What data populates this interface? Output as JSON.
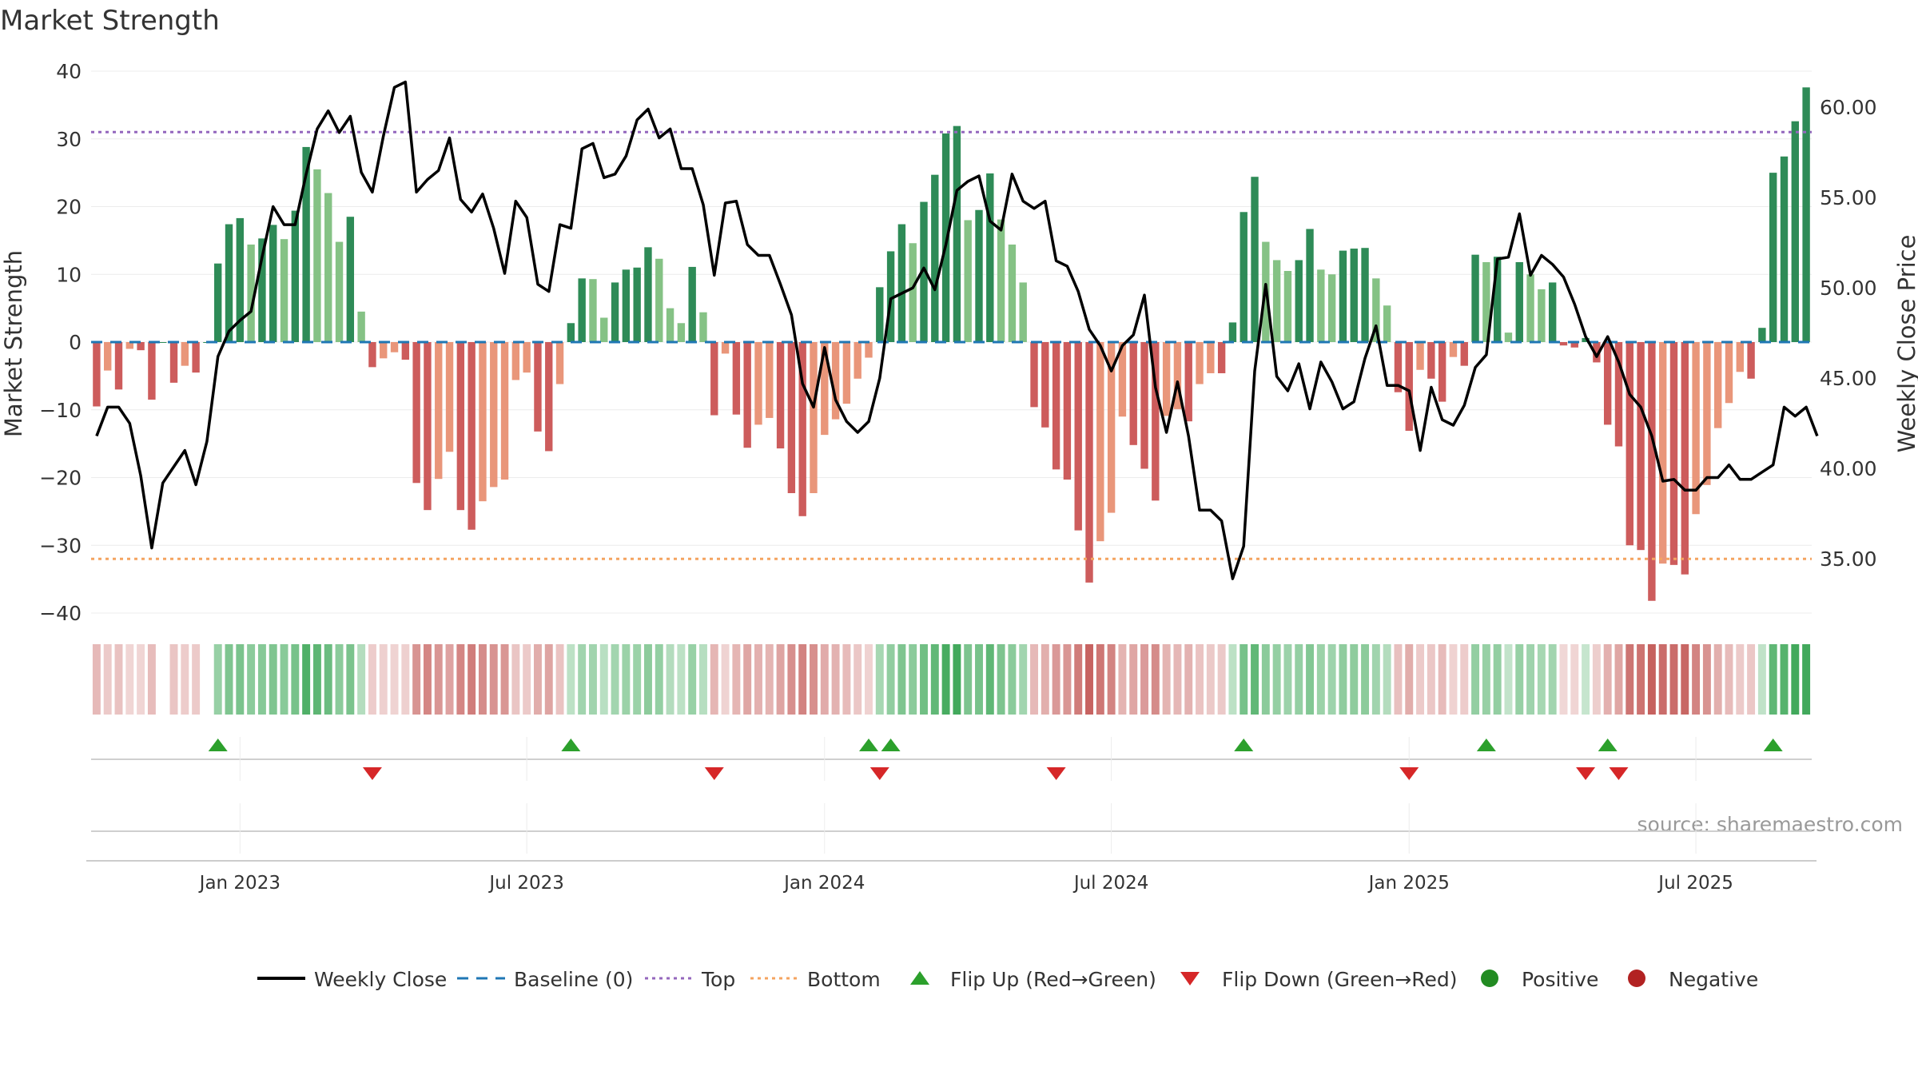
{
  "chart_data": {
    "type": "bar",
    "title": "Market Strength",
    "ylabel": "Market Strength",
    "y2label": "Weekly Close Price",
    "source": "source: sharemaestro.com",
    "ylim": [
      -40,
      40
    ],
    "y2lim": [
      32.0,
      62.0
    ],
    "yticks": [
      "40",
      "30",
      "20",
      "10",
      "0",
      "−10",
      "−20",
      "−30",
      "−40"
    ],
    "y2ticks": [
      "60.00",
      "55.00",
      "50.00",
      "45.00",
      "40.00",
      "35.00"
    ],
    "x_ticks": [
      "Jan 2023",
      "Jul 2023",
      "Jan 2024",
      "Jul 2024",
      "Jan 2025",
      "Jul 2025"
    ],
    "x_tick_weeks": [
      13,
      39,
      66,
      92,
      119,
      145
    ],
    "top_line": 31,
    "bottom_line": -32,
    "strength": [
      -9.5,
      -4.2,
      -7,
      -1,
      -1.2,
      -8.5,
      0,
      -6,
      -3.5,
      -4.5,
      0,
      11.6,
      17.4,
      18.3,
      14.4,
      15.3,
      17.3,
      15.2,
      19.4,
      28.8,
      25.5,
      22,
      14.8,
      18.5,
      4.5,
      -3.7,
      -2.4,
      -1.5,
      -2.6,
      -20.8,
      -24.8,
      -20.2,
      -16.2,
      -24.8,
      -27.7,
      -23.5,
      -21.4,
      -20.3,
      -5.6,
      -4.5,
      -13.2,
      -16.1,
      -6.2,
      2.8,
      9.4,
      9.3,
      3.6,
      8.8,
      10.7,
      11,
      14,
      12.3,
      5,
      2.8,
      11.1,
      4.4,
      -10.8,
      -1.7,
      -10.7,
      -15.6,
      -12.2,
      -11.2,
      -15.7,
      -22.3,
      -25.7,
      -22.3,
      -13.7,
      -11.4,
      -9.1,
      -5.4,
      -2.3,
      8.1,
      13.4,
      17.4,
      14.6,
      20.7,
      24.7,
      30.8,
      31.9,
      18,
      19.5,
      24.9,
      18.1,
      14.4,
      8.8,
      -9.6,
      -12.6,
      -18.8,
      -20.3,
      -27.8,
      -35.5,
      -29.4,
      -25.2,
      -11,
      -15.2,
      -18.7,
      -23.4,
      -10.9,
      -9.9,
      -11.7,
      -6.2,
      -4.6,
      -4.6,
      2.9,
      19.2,
      24.4,
      14.8,
      12.1,
      10.5,
      12.1,
      16.7,
      10.7,
      10,
      13.5,
      13.8,
      13.9,
      9.4,
      5.4,
      -7.4,
      -13.1,
      -4.1,
      -5.4,
      -8.8,
      -2.2,
      -3.5,
      12.9,
      11.8,
      12.6,
      1.4,
      11.8,
      10,
      7.8,
      8.8,
      -0.5,
      -0.8,
      0.6,
      -3,
      -12.2,
      -15.4,
      -30,
      -30.7,
      -38.2,
      -32.7,
      -32.9,
      -34.3,
      -25.4,
      -21.1,
      -12.7,
      -9,
      -4.4,
      -5.4,
      2.1,
      25,
      27.4,
      32.6,
      37.6
    ],
    "price": [
      41.8,
      43.4,
      43.4,
      42.5,
      39.6,
      35.6,
      39.2,
      40.1,
      41,
      39.1,
      41.5,
      46.2,
      47.6,
      48.2,
      48.7,
      51.7,
      54.5,
      53.5,
      53.5,
      56.3,
      58.8,
      59.8,
      58.6,
      59.5,
      56.4,
      55.3,
      58.4,
      61.1,
      61.4,
      55.3,
      56,
      56.5,
      58.3,
      54.9,
      54.2,
      55.2,
      53.3,
      50.8,
      54.8,
      53.9,
      50.2,
      49.8,
      53.5,
      53.3,
      57.7,
      58,
      56.1,
      56.3,
      57.3,
      59.3,
      59.9,
      58.3,
      58.8,
      56.6,
      56.6,
      54.6,
      50.7,
      54.7,
      54.8,
      52.4,
      51.8,
      51.8,
      50.2,
      48.5,
      44.7,
      43.4,
      46.7,
      43.8,
      42.6,
      42,
      42.6,
      45,
      49.4,
      49.7,
      50,
      51.1,
      49.9,
      52.4,
      55.4,
      55.9,
      56.2,
      53.7,
      53.2,
      56.3,
      54.8,
      54.4,
      54.8,
      51.5,
      51.2,
      49.8,
      47.7,
      46.8,
      45.4,
      46.8,
      47.4,
      49.6,
      44.5,
      42,
      44.8,
      41.8,
      37.7,
      37.7,
      37.1,
      33.9,
      35.7,
      45.4,
      50.2,
      45.1,
      44.3,
      45.8,
      43.3,
      45.9,
      44.8,
      43.3,
      43.7,
      46.1,
      47.9,
      44.6,
      44.6,
      44.3,
      41,
      44.5,
      42.7,
      42.4,
      43.5,
      45.6,
      46.3,
      51.6,
      51.7,
      54.1,
      50.7,
      51.8,
      51.3,
      50.6,
      49.1,
      47.3,
      46.2,
      47.3,
      45.9,
      44.1,
      43.4,
      41.8,
      39.3,
      39.4,
      38.8,
      38.8,
      39.5,
      39.5,
      40.2,
      39.4,
      39.4,
      39.8,
      40.2,
      43.4,
      42.9,
      43.4,
      41.8
    ],
    "flip_up_weeks": [
      11,
      43,
      70,
      72,
      104,
      126,
      137,
      152
    ],
    "flip_down_weeks": [
      25,
      56,
      71,
      87,
      119,
      135,
      138
    ],
    "legend": [
      "Weekly Close",
      "Baseline (0)",
      "Top",
      "Bottom",
      "Flip Up (Red→Green)",
      "Flip Down (Green→Red)",
      "Positive",
      "Negative"
    ],
    "colors": {
      "strong_green": "#2e8b57",
      "light_green": "#85c285",
      "strong_red": "#cd5c5c",
      "light_red": "#e9967a",
      "line": "#000000",
      "baseline": "#1f77b4",
      "top": "#9467bd",
      "bottom": "#f4a460",
      "flip_up": "#2ca02c",
      "flip_down": "#d62728",
      "positive": "#228b22",
      "negative": "#b22222"
    }
  }
}
